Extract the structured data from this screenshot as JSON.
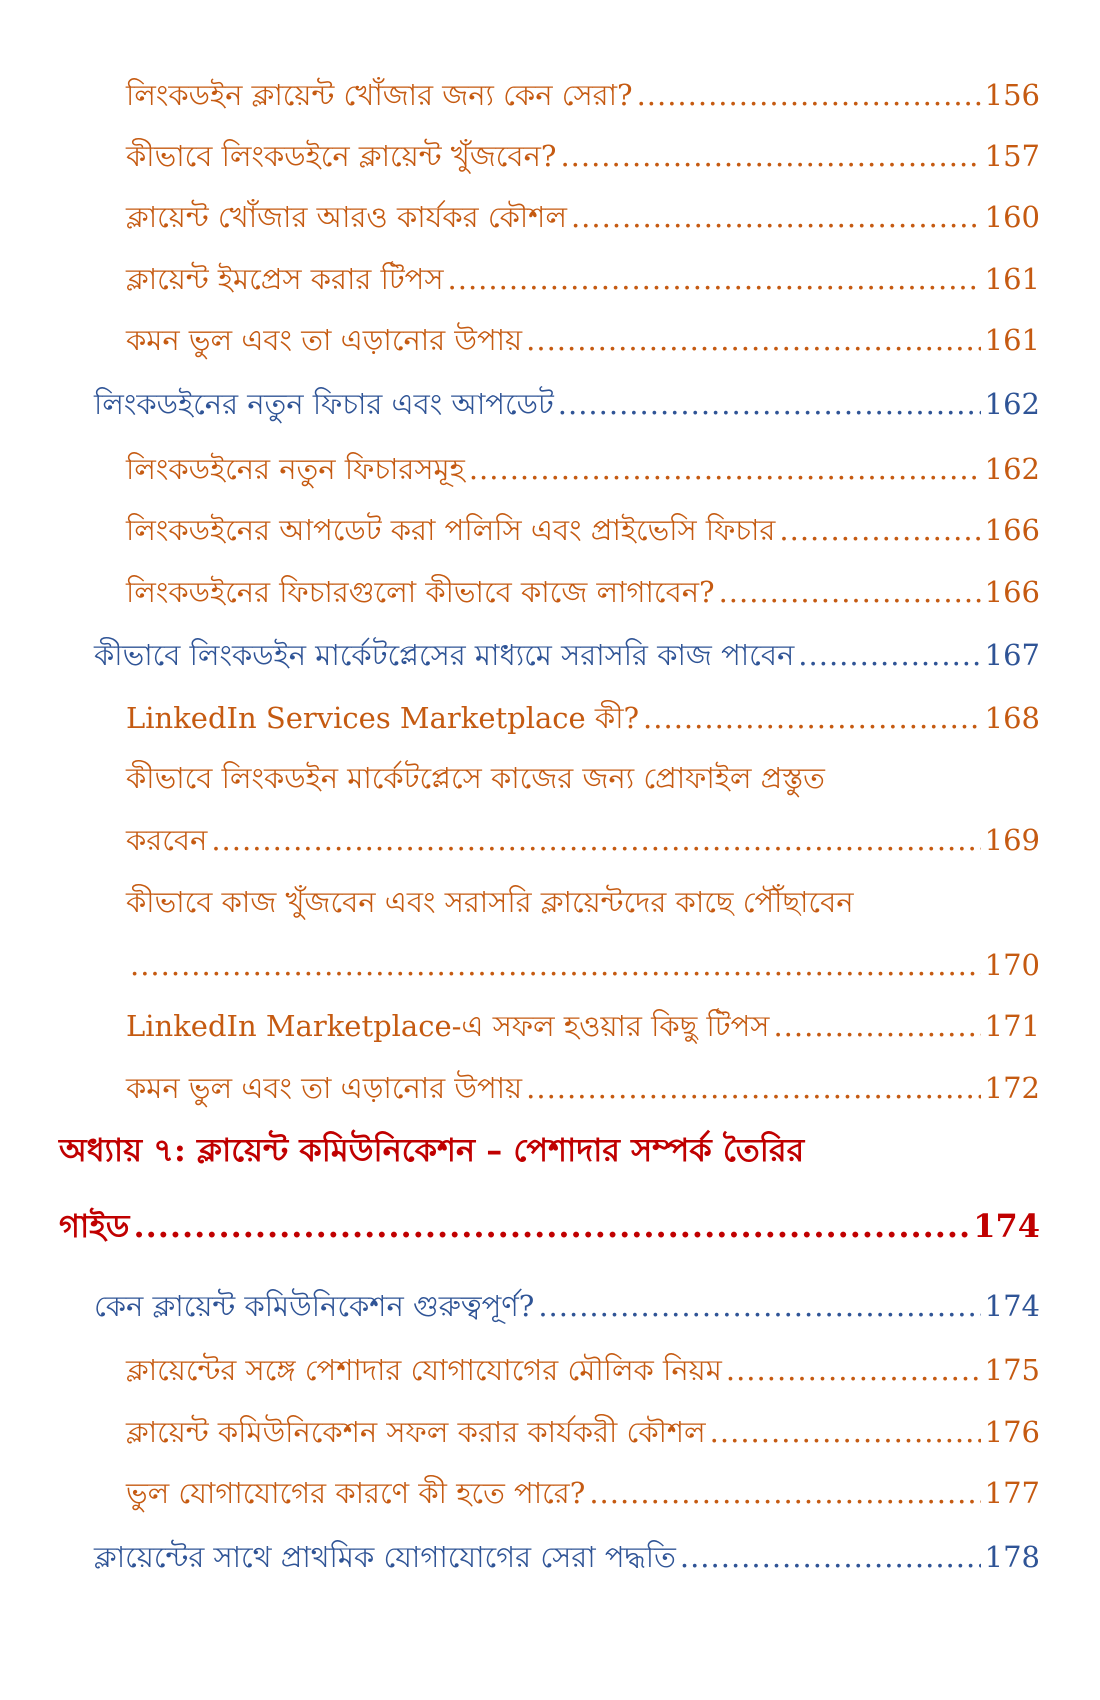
{
  "colors": {
    "section": "#c55a11",
    "subchapter": "#2f5496",
    "chapter": "#c00000"
  },
  "entries": [
    {
      "level": 3,
      "text": "লিংকডইন ক্লায়েন্ট খোঁজার জন্য কেন সেরা?",
      "page": "156"
    },
    {
      "level": 3,
      "text": "কীভাবে লিংকডইনে ক্লায়েন্ট খুঁজবেন?",
      "page": "157"
    },
    {
      "level": 3,
      "text": "ক্লায়েন্ট খোঁজার আরও কার্যকর কৌশল",
      "page": "160"
    },
    {
      "level": 3,
      "text": "ক্লায়েন্ট ইমপ্রেস করার টিপস",
      "page": "161"
    },
    {
      "level": 3,
      "text": "কমন ভুল এবং তা এড়ানোর উপায়",
      "page": "161"
    },
    {
      "level": 2,
      "text": "লিংকডইনের নতুন ফিচার এবং আপডেট",
      "page": "162"
    },
    {
      "level": 3,
      "text": "লিংকডইনের নতুন ফিচারসমূহ",
      "page": "162"
    },
    {
      "level": 3,
      "text": "লিংকডইনের আপডেট করা পলিসি এবং প্রাইভেসি ফিচার",
      "page": "166"
    },
    {
      "level": 3,
      "text": "লিংকডইনের ফিচারগুলো কীভাবে কাজে লাগাবেন?",
      "page": "166"
    },
    {
      "level": 2,
      "text": "কীভাবে লিংকডইন মার্কেটপ্লেসের মাধ্যমে সরাসরি কাজ পাবেন",
      "page": "167"
    },
    {
      "level": 3,
      "text": "LinkedIn Services Marketplace কী?",
      "page": "168"
    },
    {
      "level": 3,
      "text": "কীভাবে লিংকডইন মার্কেটপ্লেসে কাজের জন্য প্রোফাইল প্রস্তুত",
      "text2": "করবেন",
      "page": "169"
    },
    {
      "level": 3,
      "text": "কীভাবে কাজ খুঁজবেন এবং সরাসরি ক্লায়েন্টদের কাছে পৌঁছাবেন",
      "text2": "",
      "page": "170"
    },
    {
      "level": 3,
      "text": "LinkedIn Marketplace-এ সফল হওয়ার কিছু টিপস",
      "page": "171"
    },
    {
      "level": 3,
      "text": "কমন ভুল এবং তা এড়ানোর উপায়",
      "page": "172"
    },
    {
      "level": 1,
      "text": "অধ্যায় ৭: ক্লায়েন্ট কমিউনিকেশন – পেশাদার সম্পর্ক তৈরির",
      "text2": "গাইড",
      "page": "174"
    },
    {
      "level": 2,
      "text": "কেন ক্লায়েন্ট কমিউনিকেশন গুরুত্বপূর্ণ?",
      "page": "174"
    },
    {
      "level": 3,
      "text": "ক্লায়েন্টের সঙ্গে পেশাদার যোগাযোগের মৌলিক নিয়ম",
      "page": "175"
    },
    {
      "level": 3,
      "text": "ক্লায়েন্ট কমিউনিকেশন সফল করার কার্যকরী কৌশল",
      "page": "176"
    },
    {
      "level": 3,
      "text": "ভুল যোগাযোগের কারণে কী হতে পারে?",
      "page": "177"
    },
    {
      "level": 2,
      "text": "ক্লায়েন্টের সাথে প্রাথমিক যোগাযোগের সেরা পদ্ধতি",
      "page": "178"
    }
  ]
}
